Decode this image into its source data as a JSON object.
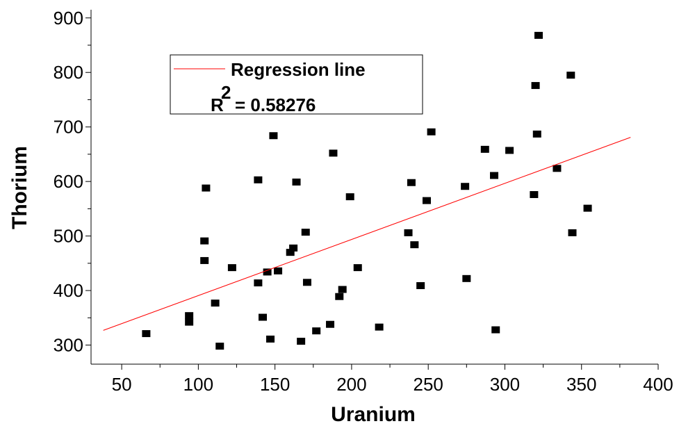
{
  "chart_data": {
    "type": "scatter",
    "xlabel": "Uranium",
    "ylabel": "Thorium",
    "xlim": [
      30,
      400
    ],
    "ylim": [
      265,
      915
    ],
    "x_ticks": [
      50,
      100,
      150,
      200,
      250,
      300,
      350,
      400
    ],
    "y_ticks": [
      300,
      400,
      500,
      600,
      700,
      800,
      900
    ],
    "grid": false,
    "legend": {
      "position": "top-left",
      "line_label": "Regression line",
      "r2_label": "R",
      "r2_exponent": "2",
      "r2_value": "= 0.58276"
    },
    "series": [
      {
        "points": [
          [
            66,
            321
          ],
          [
            94,
            342
          ],
          [
            94,
            354
          ],
          [
            104,
            491
          ],
          [
            104,
            455
          ],
          [
            105,
            588
          ],
          [
            111,
            377
          ],
          [
            114,
            298
          ],
          [
            122,
            442
          ],
          [
            139,
            414
          ],
          [
            139,
            603
          ],
          [
            142,
            351
          ],
          [
            145,
            434
          ],
          [
            147,
            311
          ],
          [
            149,
            684
          ],
          [
            152,
            436
          ],
          [
            160,
            470
          ],
          [
            162,
            478
          ],
          [
            164,
            599
          ],
          [
            167,
            307
          ],
          [
            170,
            507
          ],
          [
            171,
            415
          ],
          [
            177,
            326
          ],
          [
            186,
            338
          ],
          [
            188,
            652
          ],
          [
            192,
            389
          ],
          [
            194,
            402
          ],
          [
            199,
            572
          ],
          [
            204,
            442
          ],
          [
            218,
            333
          ],
          [
            237,
            506
          ],
          [
            239,
            598
          ],
          [
            241,
            484
          ],
          [
            245,
            409
          ],
          [
            249,
            565
          ],
          [
            252,
            691
          ],
          [
            274,
            591
          ],
          [
            275,
            422
          ],
          [
            287,
            659
          ],
          [
            293,
            611
          ],
          [
            294,
            328
          ],
          [
            303,
            657
          ],
          [
            319,
            576
          ],
          [
            320,
            776
          ],
          [
            321,
            687
          ],
          [
            322,
            868
          ],
          [
            334,
            624
          ],
          [
            343,
            795
          ],
          [
            344,
            506
          ],
          [
            354,
            551
          ]
        ],
        "color": "#000000"
      }
    ],
    "regression": {
      "from": [
        38,
        327
      ],
      "to": [
        382,
        681
      ],
      "color": "#ff0000"
    }
  }
}
